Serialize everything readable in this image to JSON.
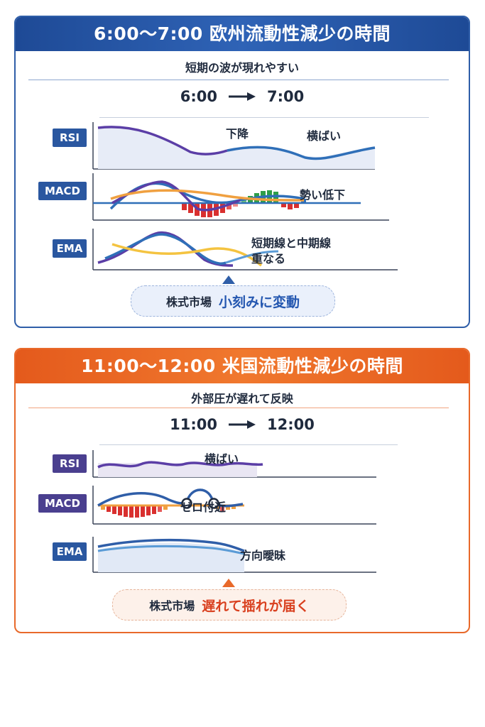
{
  "panels": [
    {
      "title": "6:00〜7:00 欧州流動性減少の時間",
      "subtitle": "短期の波が現れやすい",
      "time_from": "6:00",
      "time_to": "7:00",
      "indicators": [
        {
          "label": "RSI",
          "notes": [
            "下降",
            "横ばい"
          ]
        },
        {
          "label": "MACD",
          "notes": [
            "勢い低下"
          ]
        },
        {
          "label": "EMA",
          "notes": [
            "短期線と中期線",
            "重なる"
          ]
        }
      ],
      "callout": {
        "prefix": "株式市場",
        "highlight": "小刻みに変動"
      }
    },
    {
      "title": "11:00〜12:00 米国流動性減少の時間",
      "subtitle": "外部圧が遅れて反映",
      "time_from": "11:00",
      "time_to": "12:00",
      "indicators": [
        {
          "label": "RSI",
          "notes": [
            "横ばい"
          ]
        },
        {
          "label": "MACD",
          "notes": [
            "ゼロ付近"
          ]
        },
        {
          "label": "EMA",
          "notes": [
            "方向曖昧"
          ]
        }
      ],
      "callout": {
        "prefix": "株式市場",
        "highlight": "遅れて揺れが届く"
      }
    }
  ],
  "colors": {
    "blue_header": "#2f5ea8",
    "orange_header": "#e8692a",
    "purple_line": "#5b3ea6",
    "blue_line": "#2f6fb8",
    "orange_line": "#f0a040",
    "yellow_line": "#f4c340",
    "light_blue_line": "#5a9bd6",
    "bar_red": "#d9302f",
    "bar_green": "#2e9e48"
  },
  "icons": [
    "arrow-right-icon",
    "callout-pointer-icon"
  ]
}
